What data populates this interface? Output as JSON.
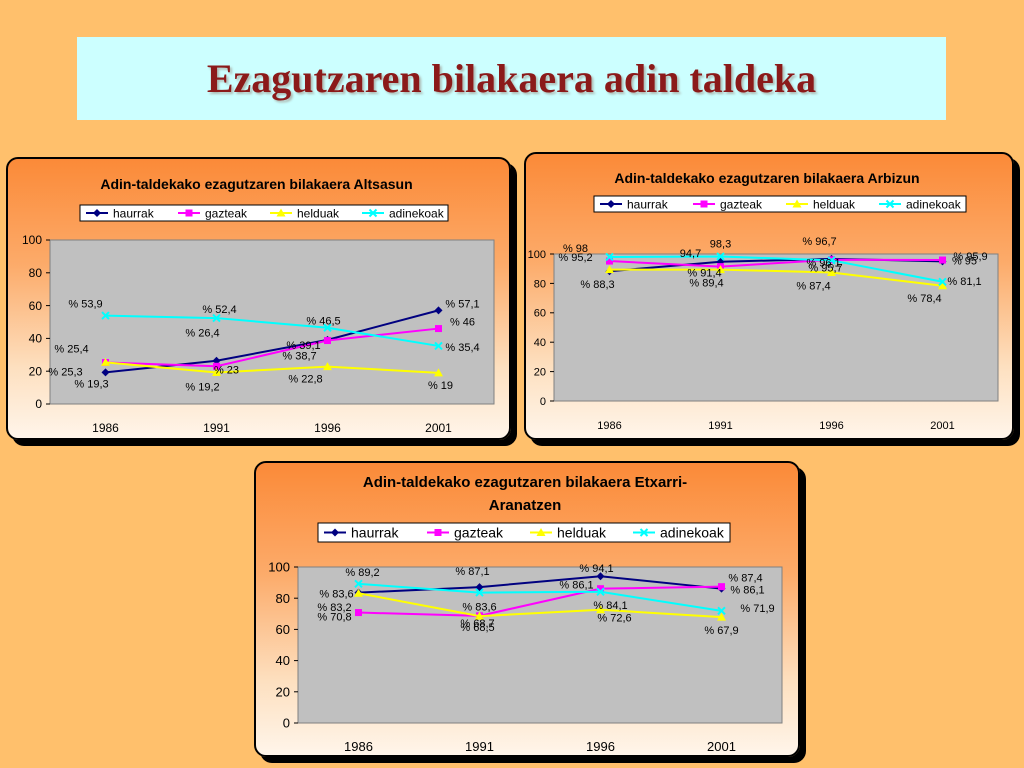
{
  "title": "Ezagutzaren bilakaera adin taldeka",
  "colors": {
    "haurrak": "#000080",
    "gazteak": "#ff00ff",
    "helduak": "#ffff00",
    "adinekoak": "#00ffff",
    "title_text": "#8b1a1a",
    "title_bg": "#ccffff",
    "page_bg": "#ffc06c",
    "plot_bg": "#c0c0c0"
  },
  "chart_data": [
    {
      "type": "line",
      "title": "Adin-taldekako ezagutzaren bilakaera Altsasun",
      "title_lines": [
        "Adin-taldekako ezagutzaren bilakaera Altsasun"
      ],
      "x": [
        "1986",
        "1991",
        "1996",
        "2001"
      ],
      "yticks": [
        "0",
        "20",
        "40",
        "60",
        "80",
        "100"
      ],
      "ylim": [
        0,
        100
      ],
      "grid": false,
      "legend": "top",
      "series": [
        {
          "name": "haurrak",
          "marker": "diamond",
          "values": [
            19.3,
            26.4,
            39.1,
            57.1
          ],
          "labels": [
            "% 19,3",
            "% 26,4",
            "% 39,1",
            "% 57,1"
          ]
        },
        {
          "name": "gazteak",
          "marker": "square",
          "values": [
            25.3,
            23,
            38.7,
            46
          ],
          "labels": [
            "% 25,3",
            "% 23",
            "% 38,7",
            "% 46"
          ]
        },
        {
          "name": "helduak",
          "marker": "triangle",
          "values": [
            25.4,
            19.2,
            22.8,
            19
          ],
          "labels": [
            "% 25,4",
            "% 19,2",
            "% 22,8",
            "% 19"
          ]
        },
        {
          "name": "adinekoak",
          "marker": "x",
          "values": [
            53.9,
            52.4,
            46.5,
            35.4
          ],
          "labels": [
            "% 53,9",
            "% 52,4",
            "% 46,5",
            "% 35,4"
          ]
        }
      ]
    },
    {
      "type": "line",
      "title": "Adin-taldekako ezagutzaren bilakaera Arbizun",
      "title_lines": [
        "Adin-taldekako ezagutzaren bilakaera Arbizun"
      ],
      "x": [
        "1986",
        "1991",
        "1996",
        "2001"
      ],
      "yticks": [
        "0",
        "20",
        "40",
        "60",
        "80",
        "100"
      ],
      "ylim": [
        0,
        100
      ],
      "grid": false,
      "legend": "top",
      "series": [
        {
          "name": "haurrak",
          "marker": "diamond",
          "values": [
            88.3,
            94.7,
            96.7,
            95
          ],
          "labels": [
            "% 88,3",
            "94,7",
            "% 96,7",
            "% 95"
          ]
        },
        {
          "name": "gazteak",
          "marker": "square",
          "values": [
            95.2,
            91.4,
            96.1,
            95.9
          ],
          "labels": [
            "% 95,2",
            "% 91,4",
            "% 96,1",
            "% 95,9"
          ]
        },
        {
          "name": "helduak",
          "marker": "triangle",
          "values": [
            89.4,
            89.4,
            87.4,
            78.4
          ],
          "labels": [
            "",
            "% 89,4",
            "% 87,4",
            "% 78,4"
          ]
        },
        {
          "name": "adinekoak",
          "marker": "x",
          "values": [
            98,
            98.3,
            95.7,
            81.1
          ],
          "labels": [
            "% 98",
            "98,3",
            "% 95,7",
            "% 81,1"
          ]
        }
      ]
    },
    {
      "type": "line",
      "title": "Adin-taldekako ezagutzaren bilakaera Etxarri-Aranatzen",
      "title_lines": [
        "Adin-taldekako ezagutzaren bilakaera Etxarri-",
        "Aranatzen"
      ],
      "x": [
        "1986",
        "1991",
        "1996",
        "2001"
      ],
      "yticks": [
        "0",
        "20",
        "40",
        "60",
        "80",
        "100"
      ],
      "ylim": [
        0,
        100
      ],
      "grid": false,
      "legend": "top",
      "series": [
        {
          "name": "haurrak",
          "marker": "diamond",
          "values": [
            83.6,
            87.1,
            94.1,
            86.1
          ],
          "labels": [
            "% 83,6",
            "% 87,1",
            "% 94,1",
            "% 86,1"
          ]
        },
        {
          "name": "gazteak",
          "marker": "square",
          "values": [
            70.8,
            68.7,
            86.1,
            87.4
          ],
          "labels": [
            "% 70,8",
            "% 68,7",
            "% 86,1",
            "% 87,4"
          ]
        },
        {
          "name": "helduak",
          "marker": "triangle",
          "values": [
            83.2,
            68.5,
            72.6,
            67.9
          ],
          "labels": [
            "% 83,2",
            "% 68,5",
            "% 72,6",
            "% 67,9"
          ]
        },
        {
          "name": "adinekoak",
          "marker": "x",
          "values": [
            89.2,
            83.6,
            84.1,
            71.9
          ],
          "labels": [
            "% 89,2",
            "% 83,6",
            "% 84,1",
            "% 71,9"
          ]
        }
      ]
    }
  ]
}
